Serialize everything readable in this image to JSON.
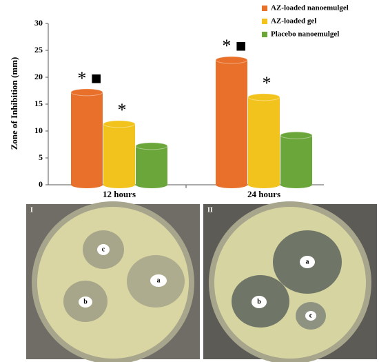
{
  "chart_data": {
    "type": "bar",
    "y_label": "Zone of Inhibition (mm)",
    "categories": [
      "12 hours",
      "24 hours"
    ],
    "series": [
      {
        "name": "AZ-loaded nanoemulgel",
        "color": "#e8702a",
        "values": [
          17.2,
          23.2
        ],
        "annotations": [
          "* ■",
          "* ■"
        ]
      },
      {
        "name": "AZ-loaded gel",
        "color": "#f2c31c",
        "values": [
          11.3,
          16.3
        ],
        "annotations": [
          "*",
          "*"
        ]
      },
      {
        "name": "Placebo nanoemulgel",
        "color": "#6aa63a",
        "values": [
          7.2,
          9.2
        ]
      }
    ],
    "ylim": [
      0,
      30
    ],
    "yticks": [
      0,
      5,
      10,
      15,
      20,
      25,
      30
    ],
    "legend": "top-right"
  },
  "panels": [
    {
      "label": "I",
      "zones": [
        "a",
        "b",
        "c"
      ]
    },
    {
      "label": "II",
      "zones": [
        "a",
        "b",
        "c"
      ]
    }
  ]
}
